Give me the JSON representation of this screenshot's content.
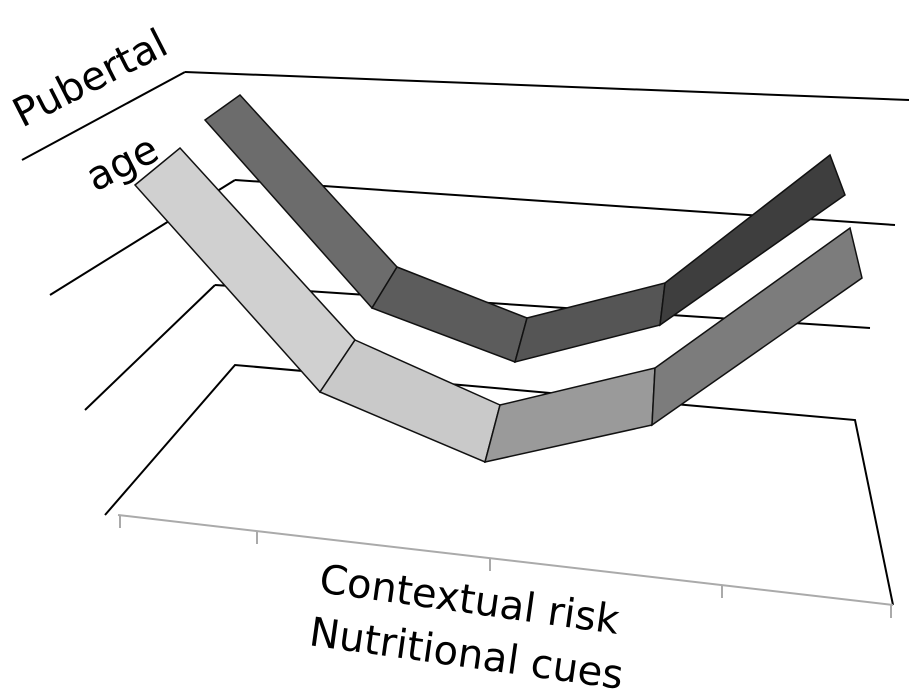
{
  "axis_labels": {
    "depth": [
      "Pubertal",
      "age"
    ],
    "horizontal": [
      "Contextual risk",
      "Nutritional cues"
    ]
  }
}
